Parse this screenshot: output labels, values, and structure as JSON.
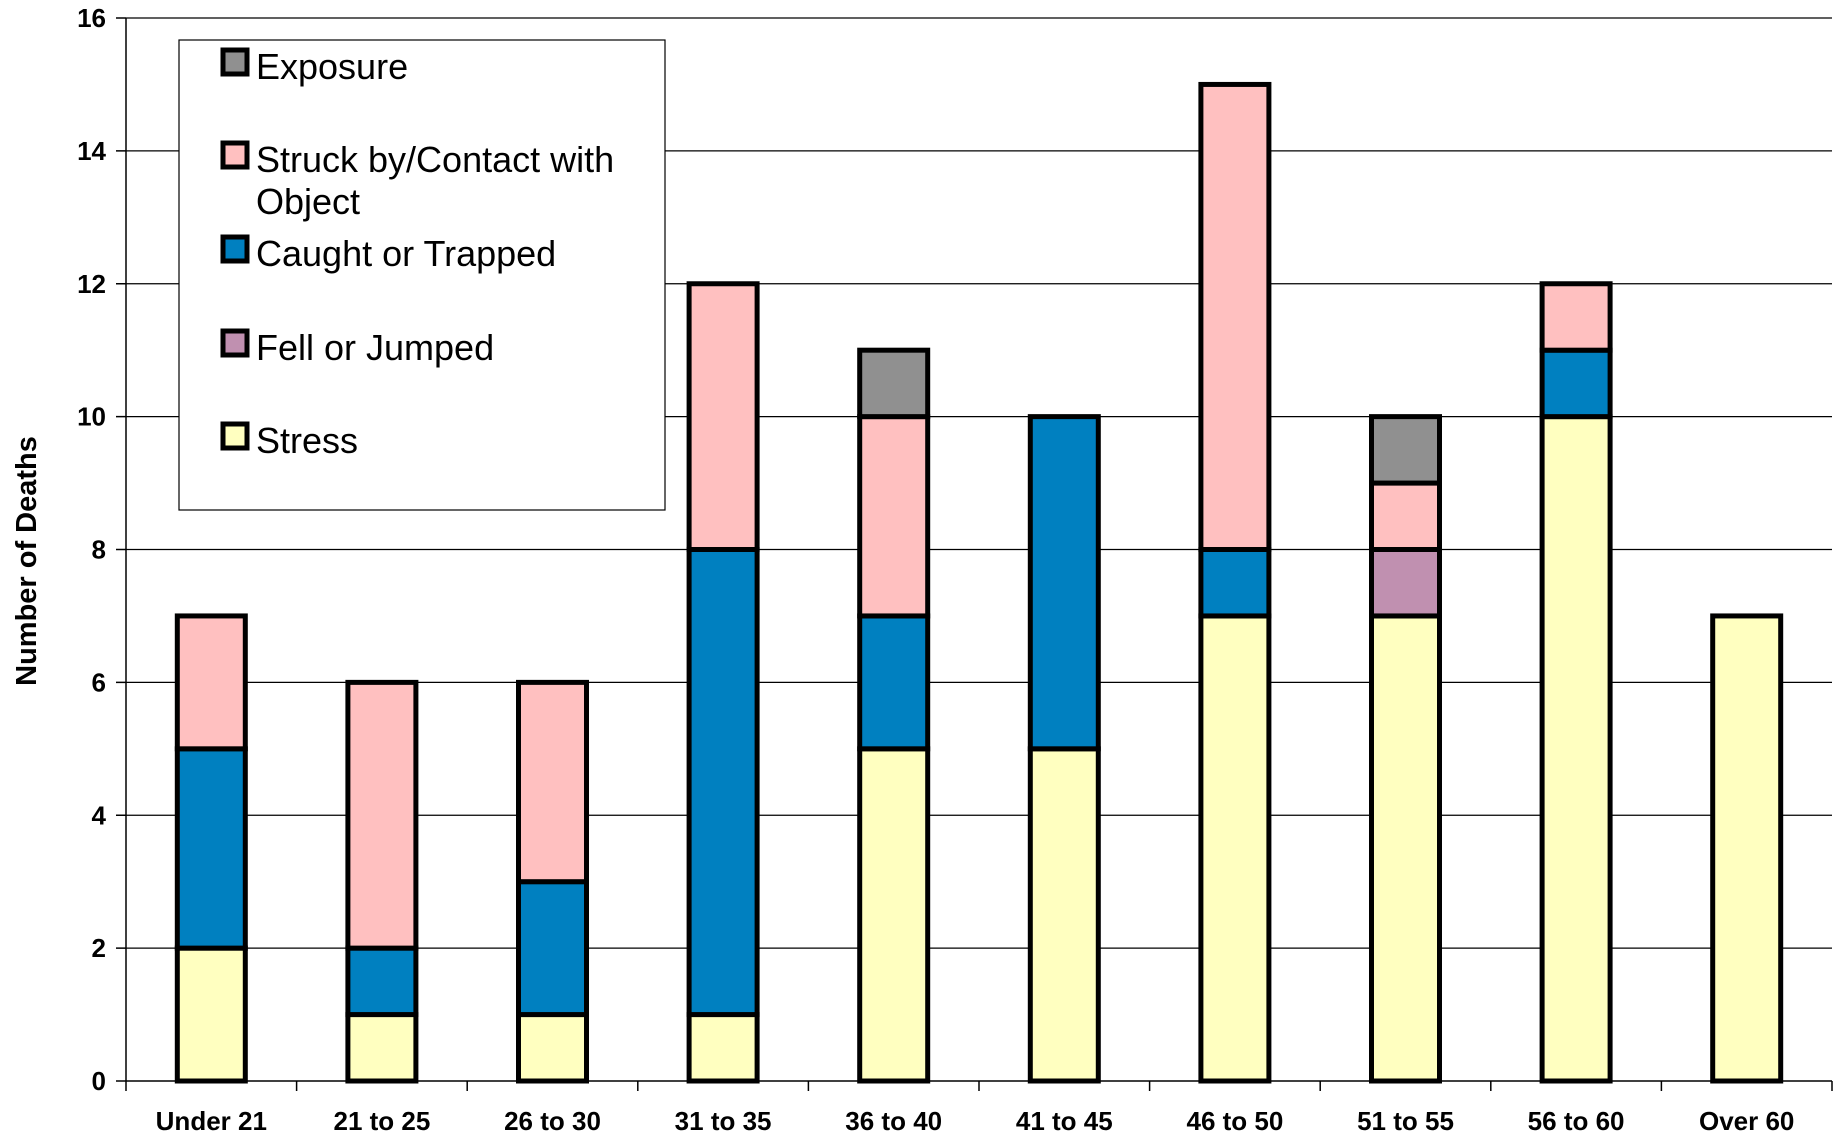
{
  "chart_data": {
    "type": "bar",
    "stacked": true,
    "title": "",
    "xlabel": "",
    "ylabel": "Number of Deaths",
    "ylim": [
      0,
      16
    ],
    "yticks": [
      0,
      2,
      4,
      6,
      8,
      10,
      12,
      14,
      16
    ],
    "grid": true,
    "legend_position": "top-left",
    "categories": [
      "Under 21",
      "21 to 25",
      "26 to 30",
      "31 to 35",
      "36 to 40",
      "41 to 45",
      "46 to 50",
      "51 to 55",
      "56 to 60",
      "Over 60"
    ],
    "series": [
      {
        "name": "Stress",
        "color": "#FFFFC0",
        "values": [
          2,
          1,
          1,
          1,
          5,
          5,
          7,
          7,
          10,
          7
        ]
      },
      {
        "name": "Fell or Jumped",
        "color": "#C090B0",
        "values": [
          0,
          0,
          0,
          0,
          0,
          0,
          0,
          1,
          0,
          0
        ]
      },
      {
        "name": "Caught or Trapped",
        "color": "#0080C0",
        "values": [
          3,
          1,
          2,
          7,
          2,
          5,
          1,
          0,
          1,
          0
        ]
      },
      {
        "name": "Struck by/Contact with Object",
        "color": "#FFC0C0",
        "values": [
          2,
          4,
          3,
          4,
          3,
          0,
          7,
          1,
          1,
          0
        ]
      },
      {
        "name": "Exposure",
        "color": "#909090",
        "values": [
          0,
          0,
          0,
          0,
          1,
          0,
          0,
          1,
          0,
          0
        ]
      }
    ],
    "legend": [
      {
        "lines": [
          "Exposure"
        ],
        "color": "#909090"
      },
      {
        "lines": [
          "Struck by/Contact with",
          "Object"
        ],
        "color": "#FFC0C0"
      },
      {
        "lines": [
          "Caught or Trapped"
        ],
        "color": "#0080C0"
      },
      {
        "lines": [
          "Fell or Jumped"
        ],
        "color": "#C090B0"
      },
      {
        "lines": [
          "Stress"
        ],
        "color": "#FFFFC0"
      }
    ]
  }
}
